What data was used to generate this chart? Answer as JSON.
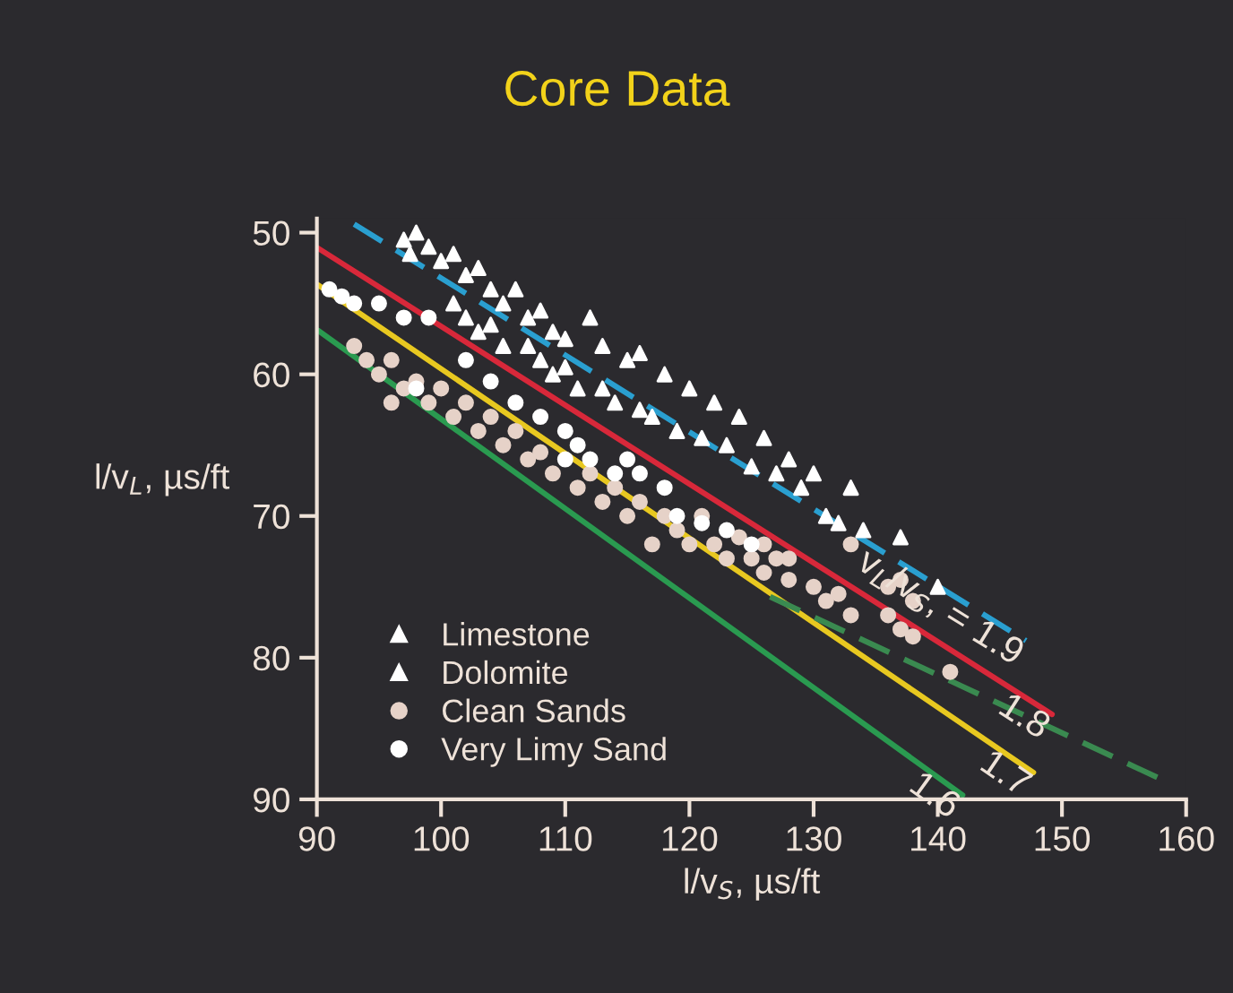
{
  "chart_data": {
    "type": "scatter",
    "title": "Core Data",
    "xlabel": "l/v$_{S}$, µs/ft",
    "ylabel": "l/v$_{L}$, µs/ft",
    "xlim": [
      90,
      160
    ],
    "xticks": [
      90,
      100,
      110,
      120,
      130,
      140,
      150,
      160
    ],
    "ylim": [
      90,
      49
    ],
    "yticks": [
      50,
      60,
      70,
      80,
      90
    ],
    "grid": false,
    "legend": "bottom left",
    "series": [
      {
        "type": "line",
        "name": "v$_{L}$/v$_{S}$, = 1.9",
        "color": "#2a9fd0",
        "line_style": "dashed",
        "x": [
          93.0,
          147.1
        ],
        "values": [
          49.4,
          78.8
        ]
      },
      {
        "type": "line",
        "name": "1.8",
        "color": "#d8283a",
        "line_style": "solid",
        "x": [
          90.1,
          149.2
        ],
        "values": [
          51.1,
          84.0
        ]
      },
      {
        "type": "line",
        "name": "1.7",
        "color": "#e8c820",
        "line_style": "solid",
        "x": [
          90.1,
          147.7
        ],
        "values": [
          53.7,
          88.1
        ]
      },
      {
        "type": "line",
        "name": "1.6",
        "color": "#2a9a50",
        "line_style": "solid",
        "x": [
          90.1,
          142.0
        ],
        "values": [
          56.9,
          89.7
        ]
      },
      {
        "type": "line",
        "color": "#3a8a50",
        "line_style": "dashed",
        "x": [
          126.5,
          157.8
        ],
        "values": [
          75.7,
          88.5
        ]
      },
      {
        "name": "Limestone",
        "color": "#ffffff",
        "marker": "triangle",
        "x": [
          97,
          98,
          97.5,
          99,
          100,
          101,
          102,
          103,
          104,
          105,
          106,
          107,
          108,
          109,
          110,
          112,
          113,
          115,
          116,
          118,
          120,
          122,
          124,
          126,
          128,
          130,
          133,
          137,
          140
        ],
        "values": [
          50.5,
          50,
          51.5,
          51,
          52,
          51.5,
          53,
          52.5,
          54,
          55,
          54,
          56,
          55.5,
          57,
          57.5,
          56,
          58,
          59,
          58.5,
          60,
          61,
          62,
          63,
          64.5,
          66,
          67,
          68,
          71.5,
          75
        ]
      },
      {
        "name": "Dolomite",
        "color": "#ffffff",
        "marker": "triangle",
        "x": [
          101,
          102,
          103,
          104,
          105,
          107,
          108,
          109,
          110,
          111,
          113,
          114,
          116,
          117,
          119,
          121,
          123,
          125,
          127,
          129,
          131,
          132,
          134
        ],
        "values": [
          55,
          56,
          57,
          56.5,
          58,
          58,
          59,
          60,
          59.5,
          61,
          61,
          62,
          62.5,
          63,
          64,
          64.5,
          65,
          66.5,
          67,
          68,
          70,
          70.5,
          71
        ]
      },
      {
        "name": "Clean Sands",
        "color": "#e6d2c8",
        "marker": "circle",
        "x": [
          93,
          94,
          95,
          96,
          97,
          98,
          96,
          99,
          100,
          101,
          102,
          103,
          104,
          105,
          106,
          107,
          108,
          109,
          110,
          111,
          112,
          113,
          114,
          115,
          116,
          118,
          117,
          119,
          120,
          121,
          122,
          123,
          124,
          125,
          126,
          127,
          128,
          130,
          131,
          132,
          133,
          136,
          137,
          138,
          136,
          137,
          138,
          141,
          133,
          126,
          128
        ],
        "values": [
          58,
          59,
          60,
          59,
          61,
          60.5,
          62,
          62,
          61,
          63,
          62,
          64,
          63,
          65,
          64,
          66,
          65.5,
          67,
          null,
          68,
          67,
          69,
          68,
          70,
          69,
          70,
          72,
          71,
          72,
          70,
          72,
          73,
          71.5,
          73,
          74,
          73,
          74.5,
          75,
          76,
          75.5,
          77,
          77,
          78,
          78.5,
          75,
          74.5,
          76,
          81,
          72,
          72,
          73
        ]
      },
      {
        "name": "Very Limy Sand",
        "color": "#ffffff",
        "marker": "circle",
        "x": [
          91,
          92,
          93,
          95,
          97,
          99,
          98,
          102,
          104,
          106,
          108,
          110,
          110,
          111,
          112,
          114,
          115,
          116,
          118,
          119,
          121,
          123,
          125
        ],
        "values": [
          54,
          54.5,
          55,
          55,
          56,
          56,
          61,
          59,
          60.5,
          62,
          63,
          64,
          66,
          65,
          66,
          67,
          66,
          67,
          68,
          70,
          70.5,
          71,
          72
        ]
      }
    ]
  }
}
